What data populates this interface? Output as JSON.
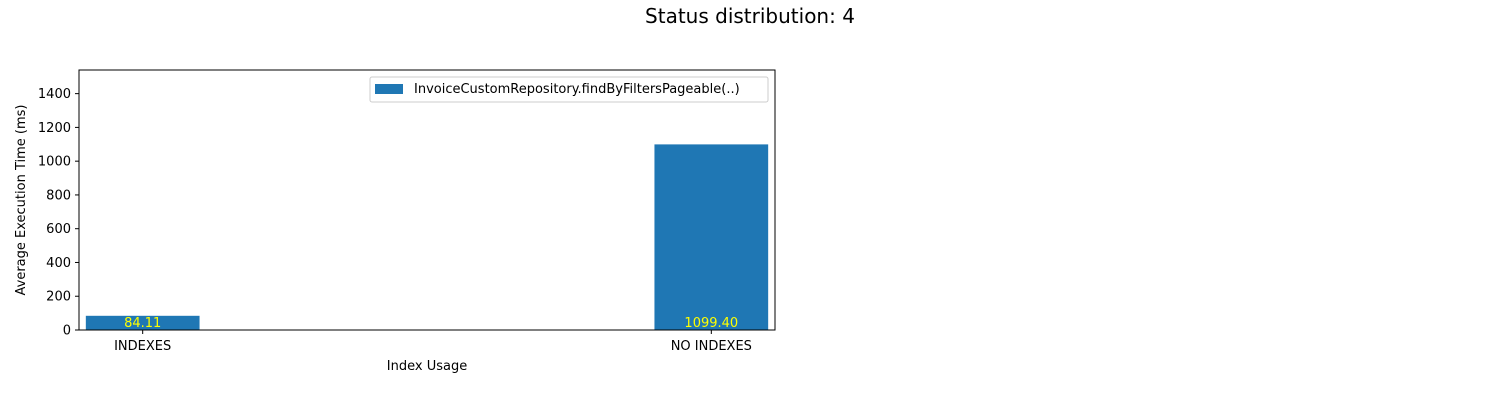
{
  "figure": {
    "title": "Status distribution: 4"
  },
  "chart_data": {
    "type": "bar",
    "title": "Status distribution: 4",
    "xlabel": "Index Usage",
    "ylabel": "Average Execution Time (ms)",
    "categories": [
      "INDEXES",
      "NO INDEXES"
    ],
    "series": [
      {
        "name": "InvoiceCustomRepository.findByFiltersPageable(..)",
        "values": [
          84.11,
          1099.4
        ],
        "labels": [
          "84.11",
          "1099.40"
        ],
        "color": "#1f77b4"
      }
    ],
    "ylim": [
      0,
      1540
    ],
    "yticks": [
      0,
      200,
      400,
      600,
      800,
      1000,
      1200,
      1400
    ],
    "label_color": "#ffff00",
    "grid": false,
    "legend_position": "upper-right"
  }
}
